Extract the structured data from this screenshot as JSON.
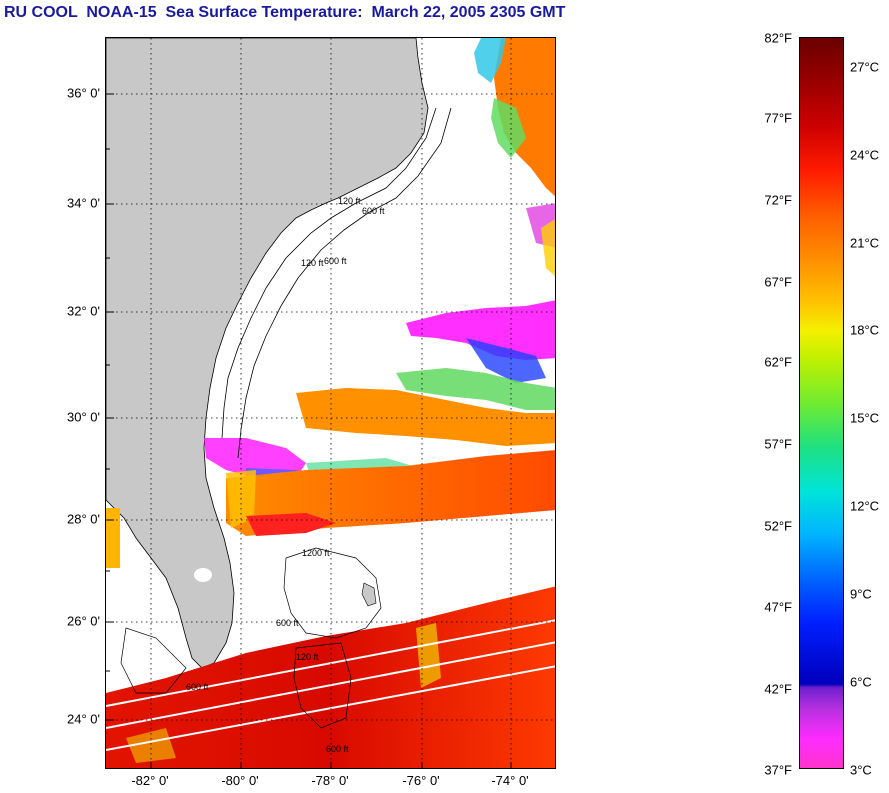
{
  "header": {
    "title": "RU COOL  NOAA-15  Sea Surface Temperature:  March 22, 2005 2305 GMT"
  },
  "map": {
    "lat_labels": [
      "36° 0'",
      "34° 0'",
      "32° 0'",
      "30° 0'",
      "28° 0'",
      "26° 0'",
      "24° 0'"
    ],
    "lon_labels": [
      "-82° 0'",
      "-80° 0'",
      "-78° 0'",
      "-76° 0'",
      "-74° 0'"
    ],
    "land_color": "#c8c8c8",
    "isobath_labels": [
      "120 ft",
      "600 ft",
      "120 ft",
      "600 ft",
      "1200 ft",
      "600 ft",
      "120 ft",
      "600 ft",
      "600 ft"
    ]
  },
  "colorbar": {
    "fahrenheit_labels": [
      "82°F",
      "77°F",
      "72°F",
      "67°F",
      "62°F",
      "57°F",
      "52°F",
      "47°F",
      "42°F",
      "37°F"
    ],
    "celsius_labels": [
      "27°C",
      "24°C",
      "21°C",
      "18°C",
      "15°C",
      "12°C",
      "9°C",
      "6°C",
      "3°C"
    ],
    "top_color": "#6b0000",
    "bottom_color": "#ff33cc"
  }
}
